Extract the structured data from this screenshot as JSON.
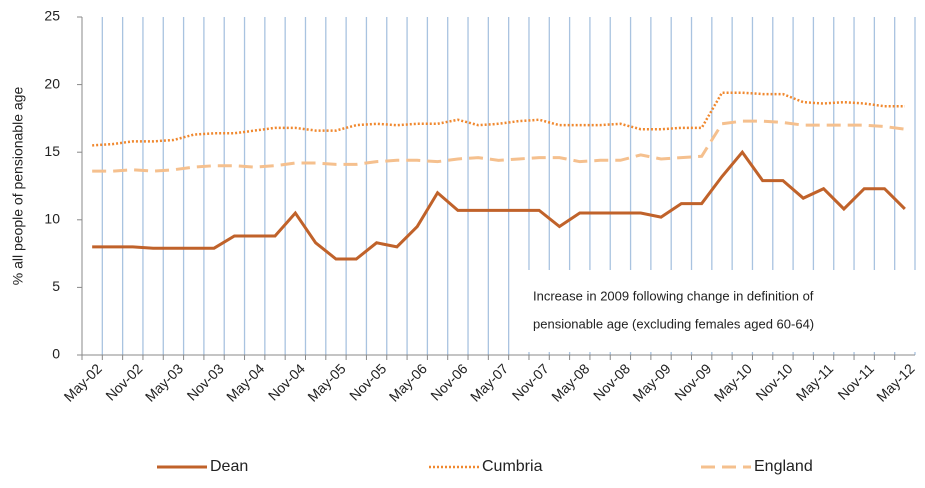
{
  "chart_data": {
    "type": "line",
    "y_label": "% all people of pensionable age",
    "annotation": [
      "Increase in 2009 following change in definition of",
      "pensionable age (excluding females aged 60-64)"
    ],
    "categories": [
      "May-02",
      null,
      "Nov-02",
      null,
      "May-03",
      null,
      "Nov-03",
      null,
      "May-04",
      null,
      "Nov-04",
      null,
      "May-05",
      null,
      "Nov-05",
      null,
      "May-06",
      null,
      "Nov-06",
      null,
      "May-07",
      null,
      "Nov-07",
      null,
      "May-08",
      null,
      "Nov-08",
      null,
      "May-09",
      null,
      "Nov-09",
      null,
      "May-10",
      null,
      "Nov-10",
      null,
      "May-11",
      null,
      "Nov-11",
      null,
      "May-12"
    ],
    "series": [
      {
        "name": "Dean",
        "color": "#c0622a",
        "dash": "solid",
        "values": [
          8.0,
          8.0,
          8.0,
          7.9,
          7.9,
          7.9,
          7.9,
          8.8,
          8.8,
          8.8,
          10.5,
          8.3,
          7.1,
          7.1,
          8.3,
          8.0,
          9.5,
          12.0,
          10.7,
          10.7,
          10.7,
          10.7,
          10.7,
          9.5,
          10.5,
          10.5,
          10.5,
          10.5,
          10.2,
          11.2,
          11.2,
          13.2,
          15.0,
          12.9,
          12.9,
          11.6,
          12.3,
          10.8,
          12.3,
          12.3,
          10.8
        ]
      },
      {
        "name": "Cumbria",
        "color": "#f0882e",
        "dash": "dotted",
        "values": [
          15.5,
          15.6,
          15.8,
          15.8,
          15.9,
          16.3,
          16.4,
          16.4,
          16.6,
          16.8,
          16.8,
          16.6,
          16.6,
          17.0,
          17.1,
          17.0,
          17.1,
          17.1,
          17.4,
          17.0,
          17.1,
          17.3,
          17.4,
          17.0,
          17.0,
          17.0,
          17.1,
          16.7,
          16.7,
          16.8,
          16.8,
          19.4,
          19.4,
          19.3,
          19.3,
          18.7,
          18.6,
          18.7,
          18.6,
          18.4,
          18.4
        ]
      },
      {
        "name": "England",
        "color": "#f5c08e",
        "dash": "dashed",
        "values": [
          13.6,
          13.6,
          13.7,
          13.6,
          13.7,
          13.9,
          14.0,
          14.0,
          13.9,
          14.0,
          14.2,
          14.2,
          14.1,
          14.1,
          14.3,
          14.4,
          14.4,
          14.3,
          14.5,
          14.6,
          14.4,
          14.5,
          14.6,
          14.6,
          14.3,
          14.4,
          14.4,
          14.8,
          14.5,
          14.6,
          14.7,
          17.1,
          17.3,
          17.3,
          17.2,
          17.0,
          17.0,
          17.0,
          17.0,
          16.9,
          16.7
        ]
      }
    ],
    "ylim": [
      0,
      25
    ],
    "yticks": [
      0,
      5,
      10,
      15,
      20,
      25
    ],
    "x_grid": true,
    "grid_color": "#a9c3e0",
    "legend": "bottom"
  }
}
